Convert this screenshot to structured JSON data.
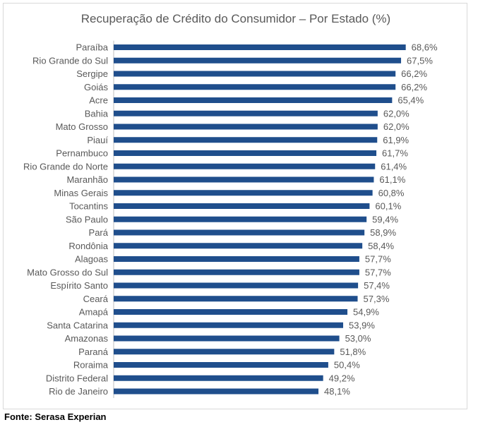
{
  "source": "Fonte: Serasa Experian",
  "colors": {
    "bar": "#1f4e8c",
    "text": "#595959",
    "axis": "#bfbfbf",
    "frame": "#d9d9d9"
  },
  "chart_data": {
    "type": "bar",
    "orientation": "horizontal",
    "title": "Recuperação de Crédito do Consumidor – Por Estado (%)",
    "xlabel": "",
    "ylabel": "",
    "xlim": [
      0,
      70
    ],
    "grid": false,
    "legend": "none",
    "categories": [
      "Paraíba",
      "Rio Grande do Sul",
      "Sergipe",
      "Goiás",
      "Acre",
      "Bahia",
      "Mato Grosso",
      "Piauí",
      "Pernambuco",
      "Rio Grande do Norte",
      "Maranhão",
      "Minas Gerais",
      "Tocantins",
      "São Paulo",
      "Pará",
      "Rondônia",
      "Alagoas",
      "Mato Grosso do Sul",
      "Espírito Santo",
      "Ceará",
      "Amapá",
      "Santa Catarina",
      "Amazonas",
      "Paraná",
      "Roraima",
      "Distrito Federal",
      "Rio de Janeiro"
    ],
    "values": [
      68.6,
      67.5,
      66.2,
      66.2,
      65.4,
      62.0,
      62.0,
      61.9,
      61.7,
      61.4,
      61.1,
      60.8,
      60.1,
      59.4,
      58.9,
      58.4,
      57.7,
      57.7,
      57.4,
      57.3,
      54.9,
      53.9,
      53.0,
      51.8,
      50.4,
      49.2,
      48.1
    ],
    "data_labels": [
      "68,6%",
      "67,5%",
      "66,2%",
      "66,2%",
      "65,4%",
      "62,0%",
      "62,0%",
      "61,9%",
      "61,7%",
      "61,4%",
      "61,1%",
      "60,8%",
      "60,1%",
      "59,4%",
      "58,9%",
      "58,4%",
      "57,7%",
      "57,7%",
      "57,4%",
      "57,3%",
      "54,9%",
      "53,9%",
      "53,0%",
      "51,8%",
      "50,4%",
      "49,2%",
      "48,1%"
    ]
  }
}
